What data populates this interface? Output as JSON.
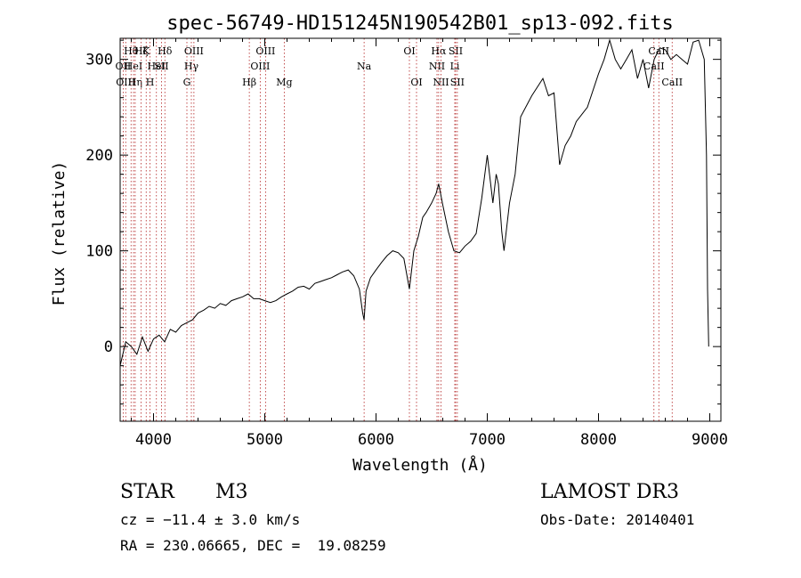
{
  "chart_data": {
    "type": "line",
    "title": "spec-56749-HD151245N190542B01_sp13-092.fits",
    "xlabel": "Wavelength (Å)",
    "ylabel": "Flux (relative)",
    "xlim": [
      3700,
      9100
    ],
    "ylim": [
      -78,
      322
    ],
    "xticks": [
      4000,
      5000,
      6000,
      7000,
      8000,
      9000
    ],
    "yticks": [
      0,
      100,
      200,
      300
    ],
    "grid": false,
    "series": [
      {
        "name": "flux",
        "x": [
          3700,
          3750,
          3800,
          3850,
          3900,
          3950,
          4000,
          4050,
          4100,
          4150,
          4200,
          4250,
          4300,
          4350,
          4400,
          4450,
          4500,
          4550,
          4600,
          4650,
          4700,
          4750,
          4800,
          4850,
          4900,
          4950,
          5000,
          5050,
          5100,
          5150,
          5200,
          5250,
          5300,
          5350,
          5400,
          5450,
          5500,
          5550,
          5600,
          5650,
          5700,
          5750,
          5800,
          5850,
          5880,
          5893,
          5910,
          5950,
          6000,
          6050,
          6100,
          6150,
          6200,
          6250,
          6300,
          6340,
          6380,
          6420,
          6450,
          6500,
          6540,
          6563,
          6600,
          6650,
          6700,
          6750,
          6800,
          6850,
          6900,
          6950,
          7000,
          7030,
          7050,
          7080,
          7100,
          7130,
          7150,
          7200,
          7250,
          7300,
          7400,
          7500,
          7550,
          7600,
          7650,
          7700,
          7750,
          7800,
          7900,
          8000,
          8050,
          8100,
          8150,
          8200,
          8250,
          8300,
          8350,
          8400,
          8450,
          8500,
          8550,
          8600,
          8650,
          8700,
          8750,
          8800,
          8850,
          8900,
          8950,
          8970,
          8980,
          8990
        ],
        "values": [
          -20,
          5,
          0,
          -8,
          10,
          -5,
          8,
          12,
          5,
          18,
          15,
          22,
          25,
          28,
          35,
          38,
          42,
          40,
          45,
          43,
          48,
          50,
          52,
          55,
          50,
          50,
          48,
          46,
          48,
          52,
          55,
          58,
          62,
          63,
          60,
          66,
          68,
          70,
          72,
          75,
          78,
          80,
          74,
          60,
          35,
          28,
          58,
          72,
          80,
          88,
          95,
          100,
          98,
          92,
          60,
          100,
          115,
          135,
          140,
          150,
          160,
          170,
          148,
          120,
          100,
          98,
          105,
          110,
          118,
          155,
          200,
          170,
          150,
          180,
          170,
          120,
          100,
          150,
          180,
          240,
          262,
          280,
          262,
          265,
          190,
          210,
          220,
          235,
          250,
          285,
          300,
          320,
          300,
          290,
          300,
          310,
          280,
          300,
          270,
          300,
          312,
          310,
          300,
          305,
          300,
          295,
          318,
          320,
          300,
          200,
          60,
          0
        ],
        "color": "#000000"
      }
    ],
    "line_markers": [
      {
        "wl": 3727,
        "label": "OII",
        "row": 1
      },
      {
        "wl": 3750,
        "label": "OIII",
        "row": 2
      },
      {
        "wl": 3798,
        "label": "Hθ",
        "row": 0
      },
      {
        "wl": 3820,
        "label": "HeI",
        "row": 1
      },
      {
        "wl": 3835,
        "label": "Hη",
        "row": 2
      },
      {
        "wl": 3889,
        "label": "Hζ",
        "row": 0
      },
      {
        "wl": 3934,
        "label": "K",
        "row": 0
      },
      {
        "wl": 3968,
        "label": "H",
        "row": 2
      },
      {
        "wl": 4026,
        "label": "HeI",
        "row": 1
      },
      {
        "wl": 4072,
        "label": "SII",
        "row": 1
      },
      {
        "wl": 4102,
        "label": "Hδ",
        "row": 0
      },
      {
        "wl": 4300,
        "label": "G",
        "row": 2
      },
      {
        "wl": 4340,
        "label": "Hγ",
        "row": 1
      },
      {
        "wl": 4363,
        "label": "OIII",
        "row": 0
      },
      {
        "wl": 4861,
        "label": "Hβ",
        "row": 2
      },
      {
        "wl": 4959,
        "label": "OIII",
        "row": 1
      },
      {
        "wl": 5007,
        "label": "OIII",
        "row": 0
      },
      {
        "wl": 5175,
        "label": "Mg",
        "row": 2
      },
      {
        "wl": 5893,
        "label": "Na",
        "row": 1
      },
      {
        "wl": 6300,
        "label": "OI",
        "row": 0
      },
      {
        "wl": 6364,
        "label": "OI",
        "row": 2
      },
      {
        "wl": 6548,
        "label": "NII",
        "row": 1
      },
      {
        "wl": 6563,
        "label": "Hα",
        "row": 0
      },
      {
        "wl": 6584,
        "label": "NII",
        "row": 2
      },
      {
        "wl": 6708,
        "label": "Li",
        "row": 1
      },
      {
        "wl": 6716,
        "label": "SII",
        "row": 0
      },
      {
        "wl": 6731,
        "label": "SII",
        "row": 2
      },
      {
        "wl": 8498,
        "label": "CaII",
        "row": 1
      },
      {
        "wl": 8542,
        "label": "CaII",
        "row": 0
      },
      {
        "wl": 8662,
        "label": "CaII",
        "row": 2
      }
    ]
  },
  "info": {
    "class_label": "STAR",
    "subclass": "M3",
    "survey": "LAMOST DR3",
    "redshift_text": "cz = −11.4 ± 3.0 km/s",
    "obs_date_text": "Obs-Date: 20140401",
    "coords_text": "RA = 230.06665, DEC =  19.08259"
  }
}
